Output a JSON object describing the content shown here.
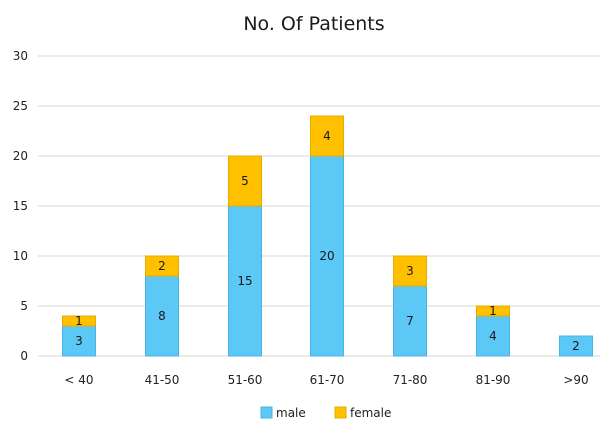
{
  "chart_data": {
    "type": "bar",
    "stacked": true,
    "title": "No. Of Patients",
    "xlabel": "",
    "ylabel": "",
    "categories": [
      "< 40",
      "41-50",
      "51-60",
      "61-70",
      "71-80",
      "81-90",
      ">90"
    ],
    "series": [
      {
        "name": "male",
        "values": [
          3,
          8,
          15,
          20,
          7,
          4,
          2
        ],
        "color": "#5cc8f5",
        "stroke": "#4ab3e3"
      },
      {
        "name": "female",
        "values": [
          1,
          2,
          5,
          4,
          3,
          1,
          null
        ],
        "color": "#ffc000",
        "stroke": "#e6ac00"
      }
    ],
    "ylim": [
      0,
      30
    ],
    "yticks": [
      0,
      5,
      10,
      15,
      20,
      25,
      30
    ],
    "grid": true,
    "legend": "bottom",
    "data_labels": true
  }
}
